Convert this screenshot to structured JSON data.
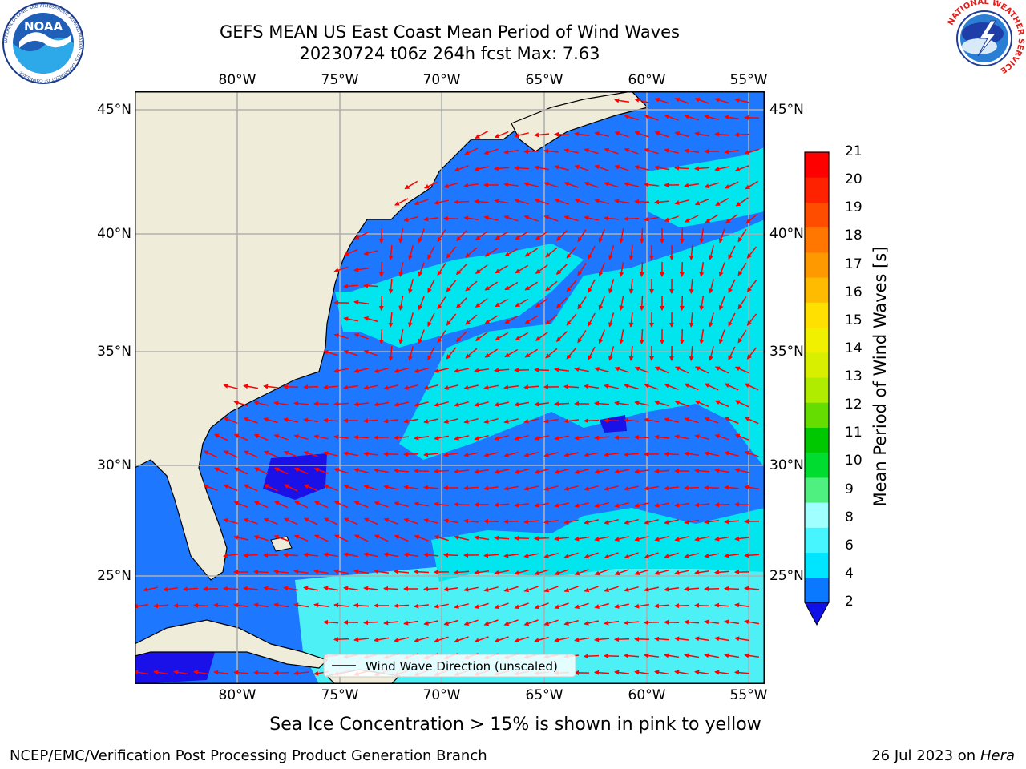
{
  "header": {
    "title_line1": "GEFS MEAN US East Coast Mean Period of Wind Waves",
    "title_line2": "20230724 t06z 264h fcst   Max: 7.63"
  },
  "logos": {
    "left": {
      "name": "noaa-logo",
      "text": "NOAA",
      "ring_text": "NATIONAL OCEANIC AND ATMOSPHERIC ADMINISTRATION · U.S. DEPARTMENT OF COMMERCE"
    },
    "right": {
      "name": "nws-logo",
      "ring_text": "NATIONAL WEATHER SERVICE"
    }
  },
  "map": {
    "lon_labels": [
      "80°W",
      "75°W",
      "70°W",
      "65°W",
      "60°W",
      "55°W"
    ],
    "lat_labels": [
      "45°N",
      "40°N",
      "35°N",
      "30°N",
      "25°N"
    ],
    "legend_label": "Wind Wave Direction (unscaled)",
    "colors": {
      "land": "#efedd9",
      "water_2_4": "#1e78ff",
      "water_4_6": "#00e5ee",
      "water_6_8": "#4df0f4",
      "below_2": "#1a10e8",
      "arrow": "#ff0000",
      "grid": "#b0b0b0"
    }
  },
  "colorbar": {
    "label": "Mean Period of Wind Waves [s]",
    "ticks": [
      "21",
      "20",
      "19",
      "18",
      "17",
      "16",
      "15",
      "14",
      "13",
      "12",
      "11",
      "10",
      "9",
      "8",
      "6",
      "4",
      "2"
    ],
    "colors_bottom_to_top": [
      "#0a78ff",
      "#00e5ff",
      "#47f5ff",
      "#a0ffff",
      "#50f080",
      "#00dd30",
      "#00c800",
      "#66dd00",
      "#b0ec00",
      "#d8f000",
      "#f0f000",
      "#ffe000",
      "#ffbb00",
      "#ff9900",
      "#ff7700",
      "#ff4d00",
      "#ff2200",
      "#ff0000"
    ],
    "extend_color": "#1010e8"
  },
  "footer": {
    "subtitle": "Sea Ice Concentration > 15% is shown in pink to yellow",
    "left": "NCEP/EMC/Verification Post Processing Product Generation Branch",
    "right_prefix": "26 Jul 2023 on ",
    "right_host": "Hera"
  }
}
